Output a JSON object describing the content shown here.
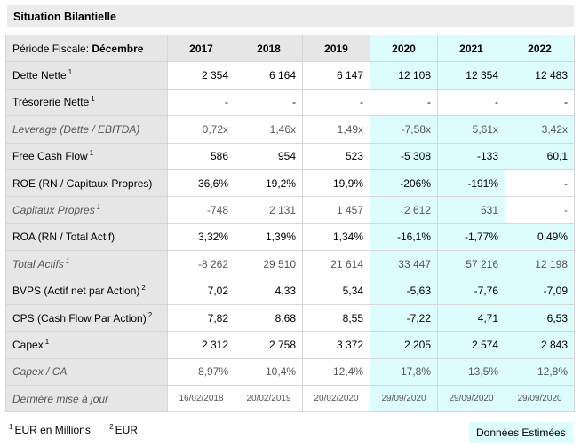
{
  "title": "Situation Bilantielle",
  "period": {
    "label": "Période Fiscale:",
    "value": "Décembre"
  },
  "years": [
    {
      "label": "2017",
      "estimated": false
    },
    {
      "label": "2018",
      "estimated": false
    },
    {
      "label": "2019",
      "estimated": false
    },
    {
      "label": "2020",
      "estimated": true
    },
    {
      "label": "2021",
      "estimated": true
    },
    {
      "label": "2022",
      "estimated": true
    }
  ],
  "rows": [
    {
      "name": "dette-nette",
      "label": "Dette Nette",
      "sup": "1",
      "italic": false,
      "values": [
        "2 354",
        "6 164",
        "6 147",
        "12 108",
        "12 354",
        "12 483"
      ],
      "estimated": [
        false,
        false,
        false,
        true,
        true,
        true
      ]
    },
    {
      "name": "tresorerie-nette",
      "label": "Trésorerie Nette",
      "sup": "1",
      "italic": false,
      "values": [
        "-",
        "-",
        "-",
        "-",
        "-",
        "-"
      ],
      "estimated": [
        false,
        false,
        false,
        false,
        false,
        false
      ]
    },
    {
      "name": "leverage",
      "label": "Leverage (Dette / EBITDA)",
      "sup": "",
      "italic": true,
      "values": [
        "0,72x",
        "1,46x",
        "1,49x",
        "-7,58x",
        "5,61x",
        "3,42x"
      ],
      "estimated": [
        false,
        false,
        false,
        true,
        true,
        true
      ]
    },
    {
      "name": "free-cash-flow",
      "label": "Free Cash Flow",
      "sup": "1",
      "italic": false,
      "values": [
        "586",
        "954",
        "523",
        "-5 308",
        "-133",
        "60,1"
      ],
      "estimated": [
        false,
        false,
        false,
        true,
        true,
        true
      ]
    },
    {
      "name": "roe",
      "label": "ROE (RN / Capitaux Propres)",
      "sup": "",
      "italic": false,
      "values": [
        "36,6%",
        "19,2%",
        "19,9%",
        "-206%",
        "-191%",
        "-"
      ],
      "estimated": [
        false,
        false,
        false,
        true,
        true,
        false
      ]
    },
    {
      "name": "capitaux-propres",
      "label": "Capitaux Propres",
      "sup": "1",
      "italic": true,
      "values": [
        "-748",
        "2 131",
        "1 457",
        "2 612",
        "531",
        "-"
      ],
      "estimated": [
        false,
        false,
        false,
        true,
        true,
        false
      ]
    },
    {
      "name": "roa",
      "label": "ROA (RN / Total Actif)",
      "sup": "",
      "italic": false,
      "values": [
        "3,32%",
        "1,39%",
        "1,34%",
        "-16,1%",
        "-1,77%",
        "0,49%"
      ],
      "estimated": [
        false,
        false,
        false,
        true,
        true,
        true
      ]
    },
    {
      "name": "total-actifs",
      "label": "Total Actifs",
      "sup": "1",
      "italic": true,
      "values": [
        "-8 262",
        "29 510",
        "21 614",
        "33 447",
        "57 216",
        "12 198"
      ],
      "estimated": [
        false,
        false,
        false,
        true,
        true,
        true
      ]
    },
    {
      "name": "bvps",
      "label": "BVPS (Actif net par Action)",
      "sup": "2",
      "italic": false,
      "values": [
        "7,02",
        "4,33",
        "5,34",
        "-5,63",
        "-7,76",
        "-7,09"
      ],
      "estimated": [
        false,
        false,
        false,
        true,
        true,
        true
      ]
    },
    {
      "name": "cps",
      "label": "CPS (Cash Flow Par Action)",
      "sup": "2",
      "italic": false,
      "values": [
        "7,82",
        "8,68",
        "8,55",
        "-7,22",
        "4,71",
        "6,53"
      ],
      "estimated": [
        false,
        false,
        false,
        true,
        true,
        true
      ]
    },
    {
      "name": "capex",
      "label": "Capex",
      "sup": "1",
      "italic": false,
      "values": [
        "2 312",
        "2 758",
        "3 372",
        "2 205",
        "2 574",
        "2 843"
      ],
      "estimated": [
        false,
        false,
        false,
        true,
        true,
        true
      ]
    },
    {
      "name": "capex-ca",
      "label": "Capex / CA",
      "sup": "",
      "italic": true,
      "values": [
        "8,97%",
        "10,4%",
        "12,4%",
        "17,8%",
        "13,5%",
        "12,8%"
      ],
      "estimated": [
        false,
        false,
        false,
        true,
        true,
        true
      ]
    },
    {
      "name": "derniere-mise-a-jour",
      "label": "Dernière mise à jour",
      "sup": "",
      "italic": true,
      "date": true,
      "values": [
        "16/02/2018",
        "20/02/2019",
        "20/02/2020",
        "29/09/2020",
        "29/09/2020",
        "29/09/2020"
      ],
      "estimated": [
        false,
        false,
        false,
        true,
        true,
        true
      ]
    }
  ],
  "footnotes": [
    {
      "sup": "1",
      "text": "EUR en Millions"
    },
    {
      "sup": "2",
      "text": "EUR"
    }
  ],
  "legend": "Données Estimées",
  "colors": {
    "label_bg": "#e6e6e6",
    "estimated_bg": "#dcfcfd",
    "border": "#d6d6d6"
  }
}
